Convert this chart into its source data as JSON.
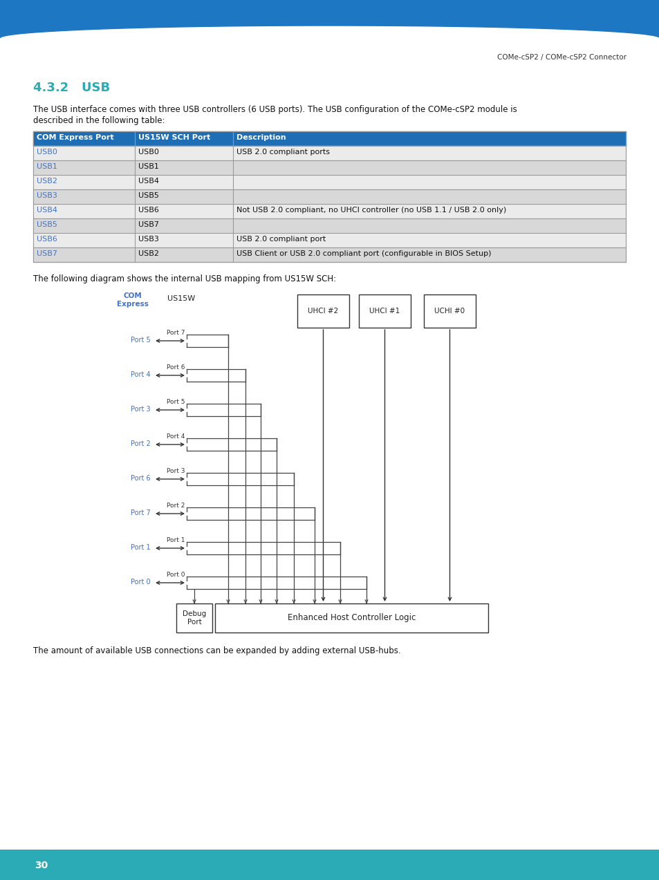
{
  "page_header_text": "COMe-cSP2 / COMe-cSP2 Connector",
  "section_title": "4.3.2   USB",
  "section_title_color": "#2AABB5",
  "body_text1a": "The USB interface comes with three USB controllers (6 USB ports). The USB configuration of the COMe-cSP2 module is",
  "body_text1b": "described in the following table:",
  "table_header": [
    "COM Express Port",
    "US15W SCH Port",
    "Description"
  ],
  "table_header_bg": "#1E6EB5",
  "table_header_fg": "#FFFFFF",
  "table_rows": [
    [
      "USB0",
      "USB0",
      "USB 2.0 compliant ports"
    ],
    [
      "USB1",
      "USB1",
      ""
    ],
    [
      "USB2",
      "USB4",
      ""
    ],
    [
      "USB3",
      "USB5",
      ""
    ],
    [
      "USB4",
      "USB6",
      "Not USB 2.0 compliant, no UHCI controller (no USB 1.1 / USB 2.0 only)"
    ],
    [
      "USB5",
      "USB7",
      ""
    ],
    [
      "USB6",
      "USB3",
      "USB 2.0 compliant port"
    ],
    [
      "USB7",
      "USB2",
      "USB Client or USB 2.0 compliant port (configurable in BIOS Setup)"
    ]
  ],
  "table_row_bg_odd": "#EBEBEB",
  "table_row_bg_even": "#D8D8D8",
  "usb_link_color": "#4472C4",
  "body_text2": "The following diagram shows the internal USB mapping from US15W SCH:",
  "body_text3": "The amount of available USB connections can be expanded by adding external USB-hubs.",
  "footer_bg": "#2AABB5",
  "footer_text": "30",
  "footer_fg": "#FFFFFF",
  "header_bar_color": "#1E77C2",
  "bg_color": "#FFFFFF",
  "diagram_com_color": "#4472C4",
  "diag_line_color": "#444444"
}
